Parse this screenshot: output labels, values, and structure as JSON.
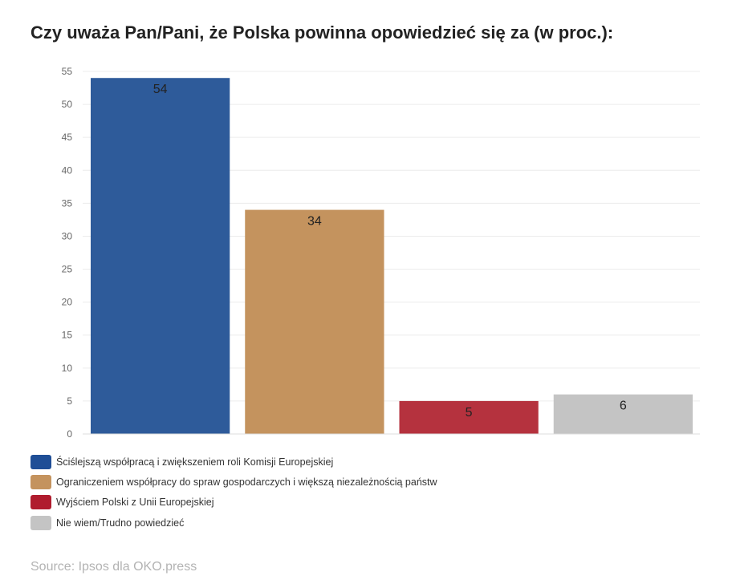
{
  "title": "Czy uważa Pan/Pani, że Polska powinna opowiedzieć się za (w proc.):",
  "source": "Source: Ipsos dla OKO.press",
  "chart_data": {
    "type": "bar",
    "title": "Czy uważa Pan/Pani, że Polska powinna opowiedzieć się za (w proc.):",
    "xlabel": "",
    "ylabel": "",
    "ylim": [
      0,
      55
    ],
    "yticks": [
      0,
      5,
      10,
      15,
      20,
      25,
      30,
      35,
      40,
      45,
      50,
      55
    ],
    "grid": true,
    "legend_position": "bottom-left",
    "categories": [
      "Ściślejszą współpracą i zwiększeniem roli Komisji Europejskiej",
      "Ograniczeniem współpracy do spraw gospodarczych i większą niezależnością państw",
      "Wyjściem Polski z Unii Europejskiej",
      "Nie wiem/Trudno powiedzieć"
    ],
    "values": [
      54,
      34,
      5,
      6
    ],
    "colors": [
      "#2e5b9a",
      "#c4935e",
      "#b5323e",
      "#c4c4c4"
    ]
  },
  "legend": [
    {
      "label": "Ściślejszą współpracą i zwiększeniem roli Komisji Europejskiej",
      "color": "#1f4e96"
    },
    {
      "label": "Ograniczeniem współpracy do spraw gospodarczych i większą niezależnością państw",
      "color": "#c4935e"
    },
    {
      "label": "Wyjściem Polski z Unii Europejskiej",
      "color": "#b01c2e"
    },
    {
      "label": "Nie wiem/Trudno powiedzieć",
      "color": "#c4c4c4"
    }
  ]
}
